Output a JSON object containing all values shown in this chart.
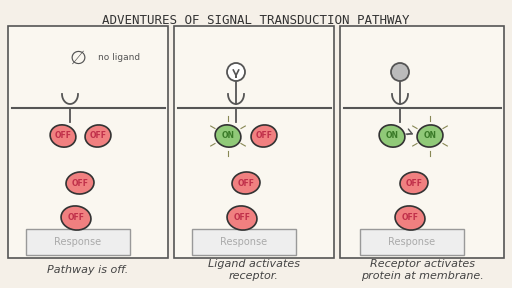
{
  "title": "ADVENTURES OF SIGNAL TRANSDUCTION PATHWAY",
  "title_fontsize": 9,
  "bg_color": "#f5f0e8",
  "panel_bg": "#faf7f0",
  "captions": [
    "Pathway is off.",
    "Ligand activates\nreceptor.",
    "Receptor activates\nprotein at membrane."
  ],
  "panel_labels": [
    "Response",
    "Response",
    "Response"
  ],
  "off_color": "#f08080",
  "on_color": "#90c978",
  "off_text_color": "#c0304a",
  "on_text_color": "#3a7a28",
  "label_fontsize": 7.5,
  "caption_fontsize": 8
}
